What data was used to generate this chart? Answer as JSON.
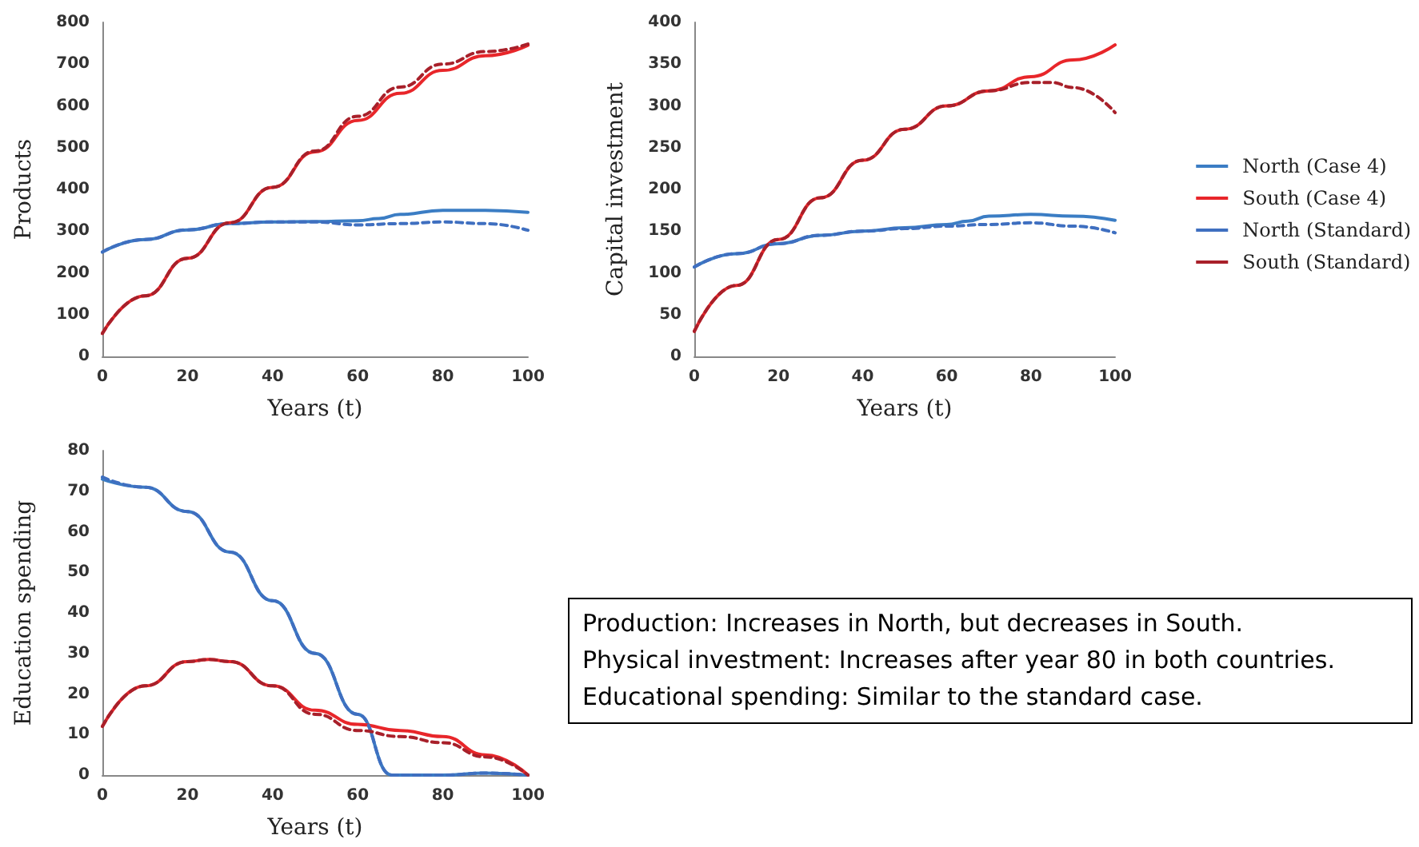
{
  "chart_data": [
    {
      "type": "line",
      "xlabel": "Years (t)",
      "ylabel": "Products",
      "xlim": [
        0,
        100
      ],
      "xticks": [
        0,
        20,
        40,
        60,
        80,
        100
      ],
      "ylim": [
        0,
        800
      ],
      "yticks": [
        0,
        100,
        200,
        300,
        400,
        500,
        600,
        700,
        800
      ],
      "grid": false,
      "legend": false,
      "marker": "none",
      "series": [
        {
          "color": "#3b7dc4",
          "line_style": "solid",
          "x": [
            0,
            10,
            20,
            30,
            40,
            50,
            60,
            65,
            70,
            80,
            90,
            100
          ],
          "values": [
            250,
            280,
            303,
            318,
            322,
            323,
            325,
            330,
            340,
            350,
            350,
            345
          ]
        },
        {
          "color": "#e8262a",
          "line_style": "solid",
          "x": [
            0,
            10,
            20,
            30,
            40,
            50,
            60,
            70,
            80,
            90,
            100
          ],
          "values": [
            55,
            145,
            235,
            320,
            405,
            490,
            565,
            630,
            685,
            720,
            745
          ]
        },
        {
          "color": "#3f6fc0",
          "line_style": "dashed",
          "x": [
            0,
            10,
            20,
            30,
            40,
            50,
            60,
            70,
            80,
            90,
            100
          ],
          "values": [
            250,
            280,
            303,
            318,
            322,
            322,
            315,
            318,
            322,
            318,
            302
          ]
        },
        {
          "color": "#a8202a",
          "line_style": "dashed",
          "x": [
            0,
            10,
            20,
            30,
            40,
            50,
            60,
            70,
            80,
            90,
            100
          ],
          "values": [
            55,
            145,
            235,
            320,
            405,
            492,
            575,
            645,
            700,
            730,
            748
          ]
        }
      ]
    },
    {
      "type": "line",
      "xlabel": "Years (t)",
      "ylabel": "Capital investment",
      "xlim": [
        0,
        100
      ],
      "xticks": [
        0,
        20,
        40,
        60,
        80,
        100
      ],
      "ylim": [
        0,
        400
      ],
      "yticks": [
        0,
        50,
        100,
        150,
        200,
        250,
        300,
        350,
        400
      ],
      "grid": false,
      "legend": "right",
      "marker": "none",
      "series": [
        {
          "name": "North (Case 4)",
          "color": "#3b7dc4",
          "line_style": "solid",
          "x": [
            0,
            10,
            20,
            30,
            40,
            50,
            60,
            65,
            70,
            80,
            90,
            100
          ],
          "values": [
            107,
            123,
            135,
            145,
            150,
            154,
            158,
            162,
            168,
            170,
            168,
            163
          ]
        },
        {
          "name": "South (Case 4)",
          "color": "#e8262a",
          "line_style": "solid",
          "x": [
            0,
            10,
            20,
            30,
            40,
            50,
            60,
            70,
            80,
            90,
            100
          ],
          "values": [
            30,
            85,
            140,
            190,
            235,
            272,
            300,
            318,
            335,
            355,
            373
          ]
        },
        {
          "name": "North (Standard)",
          "color": "#3f6fc0",
          "line_style": "dashed",
          "x": [
            0,
            10,
            20,
            30,
            40,
            50,
            60,
            70,
            80,
            90,
            100
          ],
          "values": [
            107,
            123,
            135,
            145,
            150,
            153,
            156,
            158,
            160,
            156,
            148
          ]
        },
        {
          "name": "South (Standard)",
          "color": "#a8202a",
          "line_style": "dashed",
          "x": [
            0,
            10,
            20,
            30,
            40,
            50,
            60,
            70,
            80,
            85,
            90,
            100
          ],
          "values": [
            30,
            85,
            140,
            190,
            235,
            272,
            300,
            318,
            328,
            328,
            322,
            292
          ]
        }
      ]
    },
    {
      "type": "line",
      "xlabel": "Years (t)",
      "ylabel": "Education spending",
      "xlim": [
        0,
        100
      ],
      "xticks": [
        0,
        20,
        40,
        60,
        80,
        100
      ],
      "ylim": [
        0,
        80
      ],
      "yticks": [
        0,
        10,
        20,
        30,
        40,
        50,
        60,
        70,
        80
      ],
      "grid": false,
      "legend": false,
      "marker": "none",
      "series": [
        {
          "color": "#3b7dc4",
          "line_style": "solid",
          "x": [
            0,
            10,
            20,
            30,
            40,
            50,
            60,
            68,
            80,
            90,
            100
          ],
          "values": [
            73,
            71,
            65,
            55,
            43,
            30,
            15,
            0,
            0,
            0.5,
            0
          ]
        },
        {
          "color": "#e8262a",
          "line_style": "solid",
          "x": [
            0,
            10,
            20,
            25,
            30,
            40,
            50,
            60,
            70,
            80,
            90,
            100
          ],
          "values": [
            12,
            22,
            28,
            28.5,
            28,
            22,
            16,
            12.5,
            11,
            9.5,
            5,
            0
          ]
        },
        {
          "color": "#3f6fc0",
          "line_style": "dashed",
          "x": [
            0,
            10,
            20,
            30,
            40,
            50,
            60,
            68,
            80,
            90,
            100
          ],
          "values": [
            73.5,
            71,
            65,
            55,
            43,
            30,
            15,
            0,
            0,
            0.5,
            0
          ]
        },
        {
          "color": "#a8202a",
          "line_style": "dashed",
          "x": [
            0,
            10,
            20,
            25,
            30,
            40,
            50,
            60,
            70,
            80,
            90,
            100
          ],
          "values": [
            12,
            22,
            28,
            28.5,
            28,
            22,
            15,
            11,
            9.5,
            8,
            4.5,
            0
          ]
        }
      ]
    },
    {
      "type": "other",
      "annotations": [
        "Production: Increases in North, but decreases in South.",
        "Physical investment: Increases after year 80 in both countries.",
        "Educational spending: Similar to the standard case."
      ]
    }
  ]
}
